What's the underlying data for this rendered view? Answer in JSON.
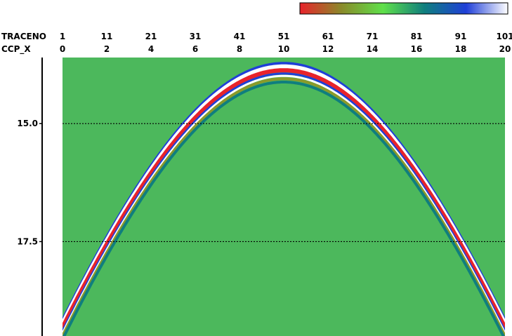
{
  "chart_data": {
    "type": "heatmap",
    "title": "",
    "colorbar": {
      "placement": "top-right",
      "colors": [
        "#e8232b",
        "#8a8a2a",
        "#5fe04a",
        "#0f7e7e",
        "#1f3fd8",
        "#ffffff"
      ]
    },
    "top_axes": [
      {
        "name": "TRACENO",
        "ticks": [
          "1",
          "11",
          "21",
          "31",
          "41",
          "51",
          "61",
          "71",
          "81",
          "91",
          "101"
        ]
      },
      {
        "name": "CCP_X",
        "ticks": [
          "0",
          "2",
          "4",
          "6",
          "8",
          "10",
          "12",
          "14",
          "16",
          "18",
          "20"
        ]
      }
    ],
    "y_axis": {
      "ticks": [
        "15.0",
        "17.5"
      ],
      "tick_values": [
        15.0,
        17.5
      ],
      "range": [
        13.6,
        19.5
      ]
    },
    "x_range": [
      0,
      20
    ],
    "hyperbola": {
      "apex_x": 10,
      "apex_t": 13.85,
      "velocity": 1.0
    },
    "background_color": "#4cb85c",
    "grid": "dashed horizontal lines at y ticks"
  }
}
